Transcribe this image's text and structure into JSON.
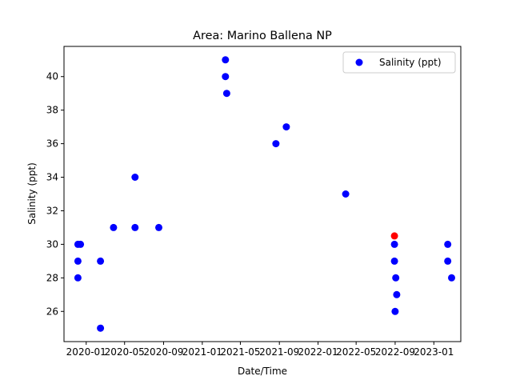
{
  "chart_data": {
    "type": "scatter",
    "title": "Area: Marino Ballena NP",
    "xlabel": "Date/Time",
    "ylabel": "Salinity (ppt)",
    "x_tick_labels": [
      "2020-01",
      "2020-05",
      "2020-09",
      "2021-01",
      "2021-05",
      "2021-09",
      "2022-01",
      "2022-05",
      "2022-09",
      "2023-01"
    ],
    "y_ticks": [
      26,
      28,
      30,
      32,
      34,
      36,
      38,
      40
    ],
    "ylim": [
      24.2,
      41.8
    ],
    "xlim": [
      "2019-10-23",
      "2023-03-27"
    ],
    "legend": {
      "label": "Salinity (ppt)",
      "placement": "upper right"
    },
    "colors": {
      "main": "#0000ff",
      "highlight": "#ff0000"
    },
    "series": [
      {
        "name": "Salinity (ppt)",
        "color": "#0000ff",
        "points": [
          {
            "x": "2019-12-06",
            "y": 30
          },
          {
            "x": "2019-12-06",
            "y": 29
          },
          {
            "x": "2019-12-06",
            "y": 28
          },
          {
            "x": "2019-12-14",
            "y": 30
          },
          {
            "x": "2020-02-15",
            "y": 29
          },
          {
            "x": "2020-02-15",
            "y": 25
          },
          {
            "x": "2020-03-27",
            "y": 31
          },
          {
            "x": "2020-06-03",
            "y": 34
          },
          {
            "x": "2020-06-03",
            "y": 31
          },
          {
            "x": "2020-08-17",
            "y": 31
          },
          {
            "x": "2021-03-15",
            "y": 41
          },
          {
            "x": "2021-03-15",
            "y": 40
          },
          {
            "x": "2021-03-19",
            "y": 39
          },
          {
            "x": "2021-08-21",
            "y": 36
          },
          {
            "x": "2021-09-23",
            "y": 37
          },
          {
            "x": "2022-03-29",
            "y": 33
          },
          {
            "x": "2022-08-30",
            "y": 30
          },
          {
            "x": "2022-08-30",
            "y": 29
          },
          {
            "x": "2022-09-03",
            "y": 28
          },
          {
            "x": "2022-09-06",
            "y": 27
          },
          {
            "x": "2022-09-01",
            "y": 26
          },
          {
            "x": "2023-02-14",
            "y": 30
          },
          {
            "x": "2023-02-14",
            "y": 29
          },
          {
            "x": "2023-02-26",
            "y": 28
          }
        ]
      },
      {
        "name": "",
        "color": "#ff0000",
        "points": [
          {
            "x": "2022-08-30",
            "y": 30.5
          }
        ]
      }
    ]
  }
}
